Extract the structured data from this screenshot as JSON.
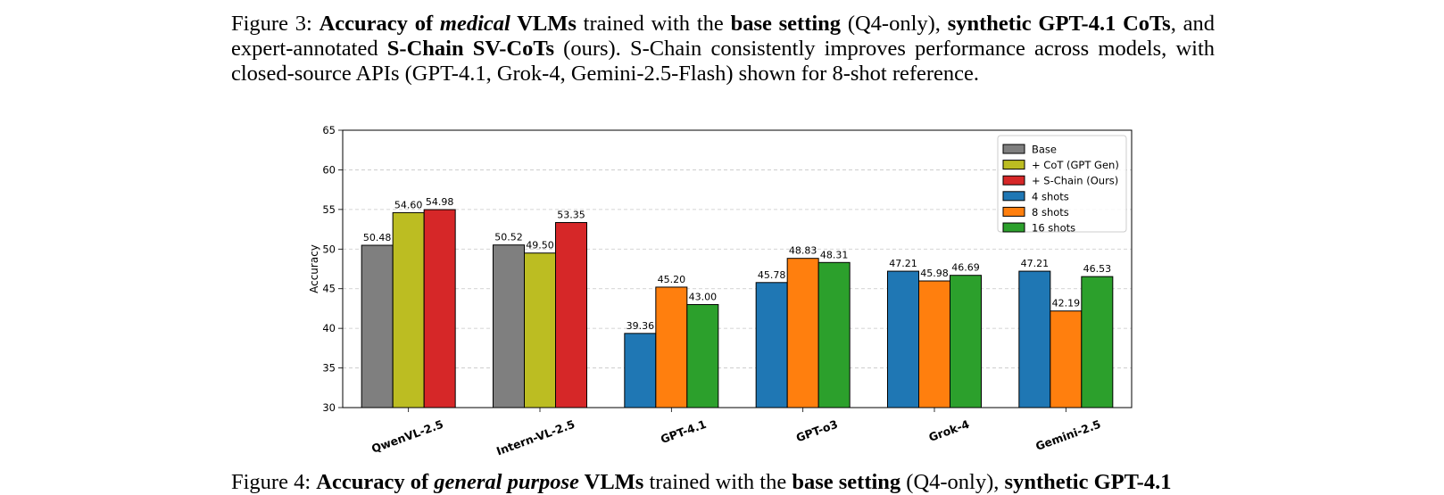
{
  "caption_top": {
    "label": "Figure 3:",
    "parts": [
      {
        "t": "Accuracy of ",
        "b": true
      },
      {
        "t": "medical",
        "b": true,
        "i": true
      },
      {
        "t": " VLMs",
        "b": true
      },
      {
        "t": " trained with the "
      },
      {
        "t": "base setting",
        "b": true
      },
      {
        "t": " (Q4-only), "
      },
      {
        "t": "synthetic GPT-4.1 CoTs",
        "b": true
      },
      {
        "t": ", and expert-annotated "
      },
      {
        "t": "S-Chain SV-CoTs",
        "b": true
      },
      {
        "t": " (ours).  S-Chain consistently improves performance across models, with closed-source APIs (GPT-4.1, Grok-4, Gemini-2.5-Flash) shown for 8-shot reference."
      }
    ]
  },
  "caption_bottom": {
    "label": "Figure 4:",
    "parts": [
      {
        "t": "Accuracy of ",
        "b": true
      },
      {
        "t": "general purpose",
        "b": true,
        "i": true
      },
      {
        "t": " VLMs",
        "b": true
      },
      {
        "t": " trained with the "
      },
      {
        "t": "base setting",
        "b": true
      },
      {
        "t": " (Q4-only), "
      },
      {
        "t": "synthetic GPT-4.1",
        "b": true
      }
    ]
  },
  "chart_data": {
    "type": "bar",
    "title": "",
    "xlabel": "",
    "ylabel": "Accuracy",
    "ylim": [
      30,
      65
    ],
    "yticks": [
      30,
      35,
      40,
      45,
      50,
      55,
      60,
      65
    ],
    "grid": "horizontal dashed",
    "legend_position": "top-right",
    "colors": {
      "Base": "#7f7f7f",
      "+ CoT (GPT Gen)": "#bcbd22",
      "+ S-Chain (Ours)": "#d62728",
      "4 shots": "#1f77b4",
      "8 shots": "#ff7f0e",
      "16 shots": "#2ca02c"
    },
    "legend": [
      "Base",
      "+ CoT (GPT Gen)",
      "+ S-Chain (Ours)",
      "4 shots",
      "8 shots",
      "16 shots"
    ],
    "categories": [
      "QwenVL-2.5",
      "Intern-VL-2.5",
      "GPT-4.1",
      "GPT-o3",
      "Grok-4",
      "Gemini-2.5"
    ],
    "groups": [
      {
        "category": "QwenVL-2.5",
        "bars": [
          {
            "series": "Base",
            "value": 50.48,
            "label": "50.48"
          },
          {
            "series": "+ CoT (GPT Gen)",
            "value": 54.6,
            "label": "54.60"
          },
          {
            "series": "+ S-Chain (Ours)",
            "value": 54.98,
            "label": "54.98"
          }
        ]
      },
      {
        "category": "Intern-VL-2.5",
        "bars": [
          {
            "series": "Base",
            "value": 50.52,
            "label": "50.52"
          },
          {
            "series": "+ CoT (GPT Gen)",
            "value": 49.5,
            "label": "49.50"
          },
          {
            "series": "+ S-Chain (Ours)",
            "value": 53.35,
            "label": "53.35"
          }
        ]
      },
      {
        "category": "GPT-4.1",
        "bars": [
          {
            "series": "4 shots",
            "value": 39.36,
            "label": "39.36"
          },
          {
            "series": "8 shots",
            "value": 45.2,
            "label": "45.20"
          },
          {
            "series": "16 shots",
            "value": 43.0,
            "label": "43.00"
          }
        ]
      },
      {
        "category": "GPT-o3",
        "bars": [
          {
            "series": "4 shots",
            "value": 45.78,
            "label": "45.78"
          },
          {
            "series": "8 shots",
            "value": 48.83,
            "label": "48.83"
          },
          {
            "series": "16 shots",
            "value": 48.31,
            "label": "48.31"
          }
        ]
      },
      {
        "category": "Grok-4",
        "bars": [
          {
            "series": "4 shots",
            "value": 47.21,
            "label": "47.21"
          },
          {
            "series": "8 shots",
            "value": 45.98,
            "label": "45.98"
          },
          {
            "series": "16 shots",
            "value": 46.69,
            "label": "46.69"
          }
        ]
      },
      {
        "category": "Gemini-2.5",
        "bars": [
          {
            "series": "4 shots",
            "value": 47.21,
            "label": "47.21"
          },
          {
            "series": "8 shots",
            "value": 42.19,
            "label": "42.19"
          },
          {
            "series": "16 shots",
            "value": 46.53,
            "label": "46.53"
          }
        ]
      }
    ]
  }
}
